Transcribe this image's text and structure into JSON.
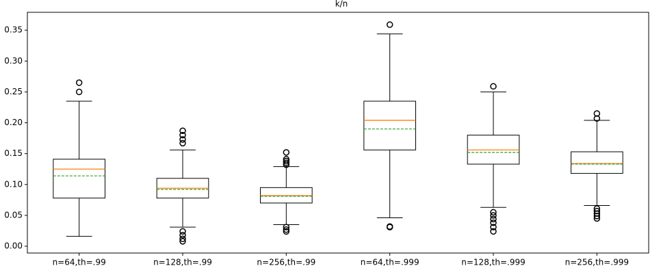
{
  "chart_data": {
    "type": "box",
    "title": "k/n",
    "categories": [
      "n=64,th=.99",
      "n=128,th=.99",
      "n=256,th=.99",
      "n=64,th=.999",
      "n=128,th=.999",
      "n=256,th=.999"
    ],
    "boxes": [
      {
        "whislo": 0.016,
        "q1": 0.078,
        "med": 0.125,
        "q3": 0.141,
        "whishi": 0.235,
        "mean": 0.114,
        "fliers": [
          0.265,
          0.25
        ]
      },
      {
        "whislo": 0.031,
        "q1": 0.078,
        "med": 0.094,
        "q3": 0.11,
        "whishi": 0.156,
        "mean": 0.092,
        "fliers": [
          0.187,
          0.18,
          0.173,
          0.167,
          0.024,
          0.018,
          0.012,
          0.008
        ]
      },
      {
        "whislo": 0.035,
        "q1": 0.07,
        "med": 0.082,
        "q3": 0.095,
        "whishi": 0.129,
        "mean": 0.081,
        "fliers": [
          0.152,
          0.141,
          0.138,
          0.135,
          0.132,
          0.031,
          0.027,
          0.024
        ]
      },
      {
        "whislo": 0.046,
        "q1": 0.156,
        "med": 0.204,
        "q3": 0.235,
        "whishi": 0.344,
        "mean": 0.19,
        "fliers": [
          0.359,
          0.032,
          0.031
        ]
      },
      {
        "whislo": 0.063,
        "q1": 0.133,
        "med": 0.156,
        "q3": 0.18,
        "whishi": 0.25,
        "mean": 0.152,
        "fliers": [
          0.259,
          0.055,
          0.05,
          0.044,
          0.038,
          0.031,
          0.024
        ]
      },
      {
        "whislo": 0.066,
        "q1": 0.118,
        "med": 0.134,
        "q3": 0.153,
        "whishi": 0.204,
        "mean": 0.133,
        "fliers": [
          0.215,
          0.207,
          0.061,
          0.057,
          0.053,
          0.049,
          0.045
        ]
      }
    ],
    "median_color": "#ff7f0e",
    "mean_color": "#2ca02c",
    "box_color": "#000000",
    "ylim": [
      -0.011,
      0.379
    ],
    "yticks": [
      {
        "value": 0,
        "label": "0.00"
      },
      0.05,
      {
        "value": 0.1,
        "label": "0.10"
      },
      0.15,
      {
        "value": 0.2,
        "label": "0.20"
      },
      0.25,
      {
        "value": 0.3,
        "label": "0.30"
      },
      0.35
    ]
  }
}
